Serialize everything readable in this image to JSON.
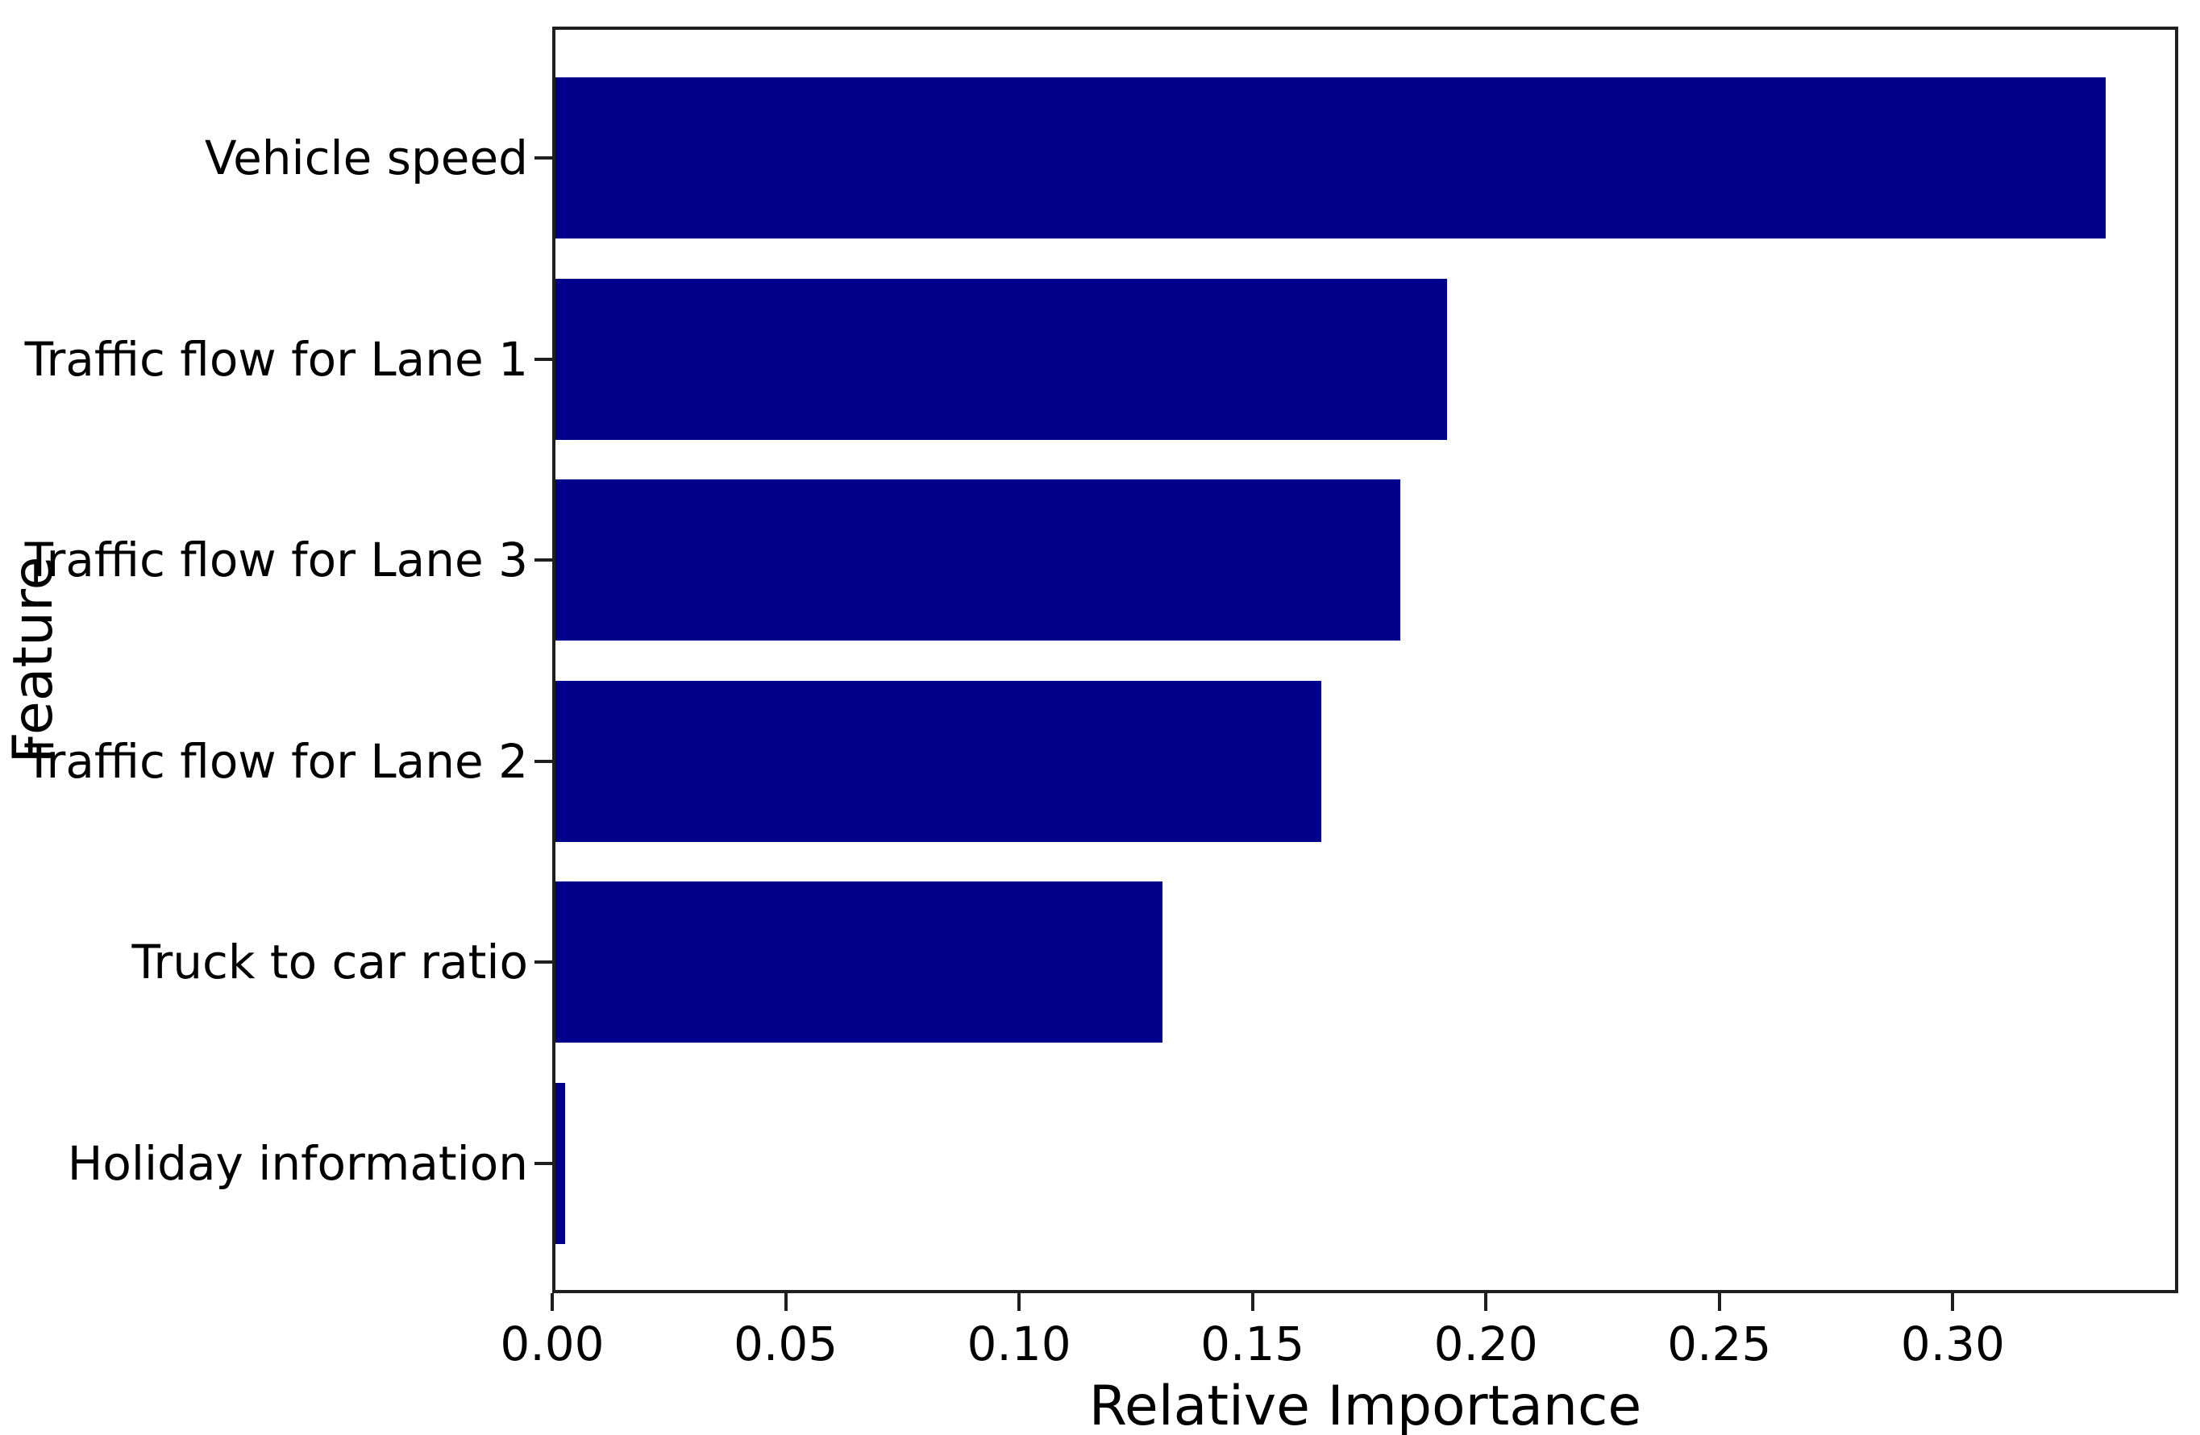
{
  "chart_data": {
    "type": "bar",
    "orientation": "horizontal",
    "categories": [
      "Vehicle speed",
      "Traffic flow for Lane 1",
      "Traffic flow for Lane 3",
      "Traffic flow for Lane 2",
      "Truck to car ratio",
      "Holiday information"
    ],
    "values": [
      0.332,
      0.191,
      0.181,
      0.164,
      0.13,
      0.002
    ],
    "xlabel": "Relative Importance",
    "ylabel": "Feature",
    "xlim": [
      0,
      0.3483
    ],
    "x_tick_values": [
      0.0,
      0.05,
      0.1,
      0.15,
      0.2,
      0.25,
      0.3
    ],
    "x_tick_labels": [
      "0.00",
      "0.05",
      "0.10",
      "0.15",
      "0.20",
      "0.25",
      "0.30"
    ],
    "bar_color": "#00008B",
    "grid": false,
    "legend": "none",
    "title": ""
  },
  "colors": {
    "bar": "#00008B",
    "spine": "#1f1f1f",
    "text": "#000000",
    "background": "#ffffff"
  }
}
